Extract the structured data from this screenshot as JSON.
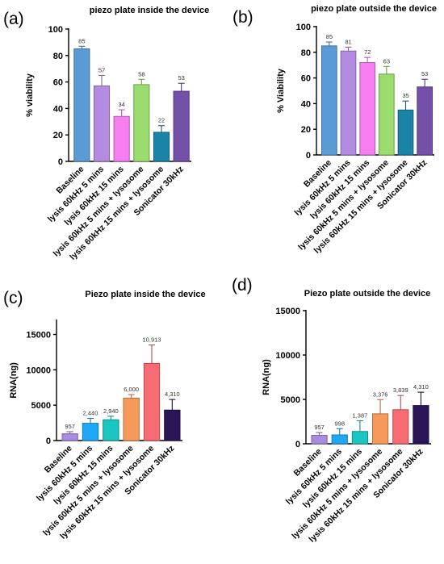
{
  "chart_data": [
    {
      "type": "bar",
      "panel": "(a)",
      "title": "piezo plate inside the device",
      "ylabel": "% viability",
      "ylim": [
        0,
        100
      ],
      "yticks": [
        0,
        20,
        40,
        60,
        80,
        100
      ],
      "yticks_text": [
        "0",
        "20",
        "40",
        "60",
        "80",
        "100"
      ],
      "grid": false,
      "categories": [
        "Baseline",
        "lysis 60kHz 5 mins",
        "lysis 60kHz 15 mins",
        "lysis 60kHz 5 mins + lysosome",
        "lysis 60kHz 15 mins + lysosome",
        "Sonicator 30kHz"
      ],
      "values": [
        85,
        57,
        34,
        58,
        22,
        53
      ],
      "value_labels": [
        "85",
        "57",
        "34",
        "58",
        "22",
        "53"
      ],
      "errors": [
        2,
        8,
        5,
        4,
        5,
        6
      ],
      "colors": [
        "#5b9bd5",
        "#b38be0",
        "#f77ef0",
        "#9bdc6f",
        "#1c83a8",
        "#7450a8"
      ]
    },
    {
      "type": "bar",
      "panel": "(b)",
      "title": "piezo plate outside the device",
      "ylabel": "% Viability",
      "ylim": [
        0,
        100
      ],
      "yticks": [
        0,
        20,
        40,
        60,
        80,
        100
      ],
      "yticks_text": [
        "0",
        "20",
        "40",
        "60",
        "80",
        "100"
      ],
      "grid": false,
      "categories": [
        "Baseline",
        "lysis 60kHz 5 mins",
        "lysis 60kHz 15 mins",
        "lysis 60kHz 5 mins + lysosome",
        "lysis 60kHz 15 mins + lysosome",
        "Sonicator 30kHz"
      ],
      "values": [
        85,
        81,
        72,
        63,
        35,
        53
      ],
      "value_labels": [
        "85",
        "81",
        "72",
        "63",
        "35",
        "53"
      ],
      "errors": [
        3,
        3,
        4,
        6,
        7,
        6
      ],
      "colors": [
        "#5b9bd5",
        "#b38be0",
        "#f77ef0",
        "#9bdc6f",
        "#1c83a8",
        "#7450a8"
      ]
    },
    {
      "type": "bar",
      "panel": "(c)",
      "title": "Piezo plate inside the device",
      "ylabel": "RNA(ng)",
      "ylim": [
        0,
        17000
      ],
      "yticks": [
        0,
        5000,
        10000,
        15000
      ],
      "yticks_text": [
        "0",
        "5000",
        "10000",
        "15000"
      ],
      "grid": false,
      "categories": [
        "Baseline",
        "lysis 60kHz 5 mins",
        "lysis 60kHz 15 mins",
        "lysis 60kHz 5 mins + lysosome",
        "lysis 60kHz 15 mins + lysosome",
        "Sonicator 30kHz"
      ],
      "values": [
        957,
        2440,
        2940,
        6000,
        10913,
        4310
      ],
      "value_labels": [
        "957",
        "2,440",
        "2,940",
        "6,000",
        "10,913",
        "4,310"
      ],
      "errors": [
        300,
        700,
        500,
        500,
        2600,
        1500
      ],
      "colors": [
        "#a98be0",
        "#1ea8f5",
        "#19c6c0",
        "#f7995a",
        "#f96b73",
        "#2a1656"
      ]
    },
    {
      "type": "bar",
      "panel": "(d)",
      "title": "Piezo plate outside the device",
      "ylabel": "RNA(ng)",
      "ylim": [
        0,
        15000
      ],
      "yticks": [
        0,
        5000,
        10000,
        15000
      ],
      "yticks_text": [
        "0",
        "5000",
        "10000",
        "15000"
      ],
      "grid": false,
      "categories": [
        "Baseline",
        "lysis 60kHz 5 mins",
        "lysis 60kHz 15 mins",
        "lysis 60kHz 5 mins + lysosome",
        "lysis 60kHz 15 mins + lysosome",
        "Sonicator 30kHz"
      ],
      "values": [
        957,
        998,
        1387,
        3376,
        3839,
        4310
      ],
      "value_labels": [
        "957",
        "998",
        "1,387",
        "3,376",
        "3,839",
        "4,310"
      ],
      "errors": [
        300,
        700,
        1200,
        1600,
        1600,
        1500
      ],
      "colors": [
        "#a98be0",
        "#1ea8f5",
        "#19c6c0",
        "#f7995a",
        "#f96b73",
        "#2a1656"
      ]
    }
  ]
}
